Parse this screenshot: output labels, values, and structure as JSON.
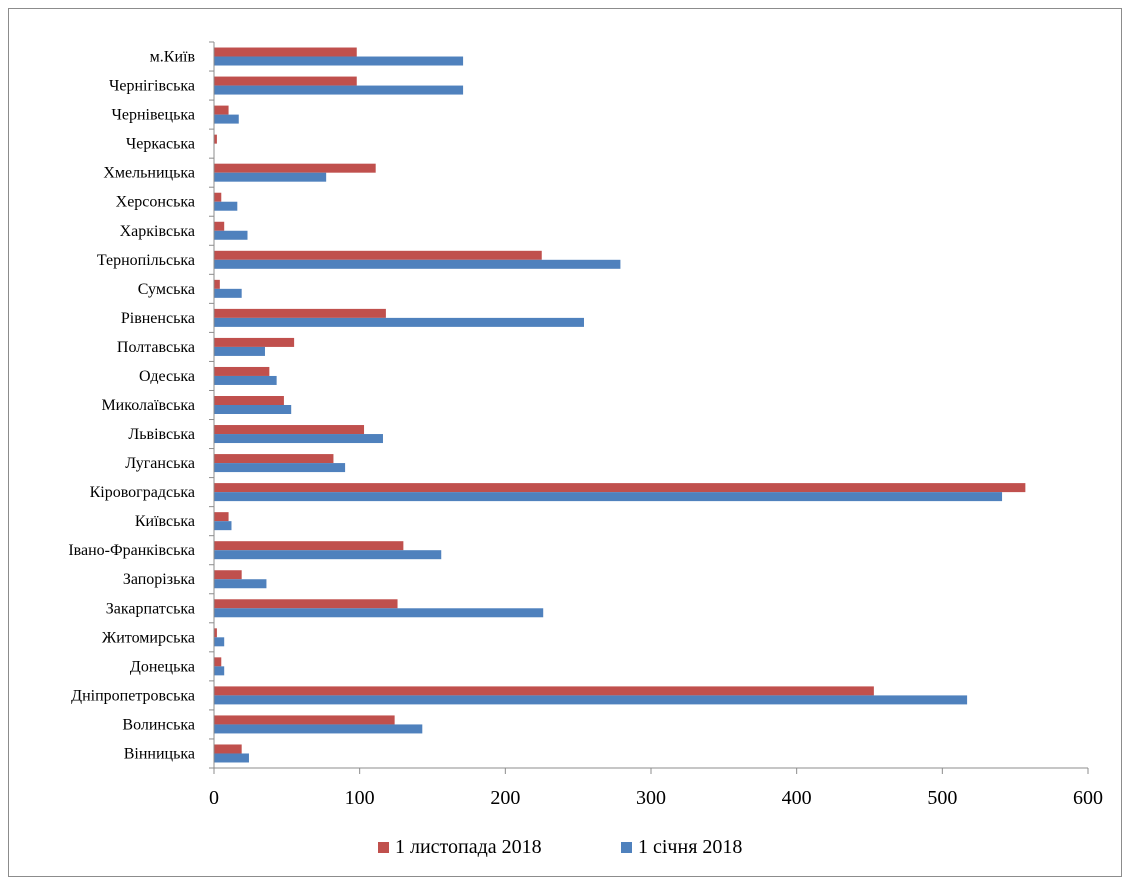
{
  "chart_data": {
    "type": "bar",
    "orientation": "horizontal",
    "title": "",
    "xlabel": "",
    "ylabel": "",
    "xlim": [
      0,
      600
    ],
    "xticks": [
      "0",
      "100",
      "200",
      "300",
      "400",
      "500",
      "600"
    ],
    "grid": false,
    "legend_position": "bottom",
    "categories": [
      "Вінницька",
      "Волинська",
      "Дніпропетровська",
      "Донецька",
      "Житомирська",
      "Закарпатська",
      "Запорізька",
      "Івано-Франківська",
      "Київська",
      "Кіровоградська",
      "Луганська",
      "Львівська",
      "Миколаївська",
      "Одеська",
      "Полтавська",
      "Рівненська",
      "Сумська",
      "Тернопільська",
      "Харківська",
      "Херсонська",
      "Хмельницька",
      "Черкаська",
      "Чернівецька",
      "Чернігівська",
      "м.Київ"
    ],
    "series": [
      {
        "name": "1 листопада 2018",
        "color": "#c0504d",
        "values": [
          19,
          124,
          453,
          5,
          2,
          126,
          19,
          130,
          10,
          557,
          82,
          103,
          48,
          38,
          55,
          118,
          4,
          225,
          7,
          5,
          111,
          2,
          10,
          98,
          98
        ]
      },
      {
        "name": "1 січня 2018",
        "color": "#4f81bd",
        "values": [
          24,
          143,
          517,
          7,
          7,
          226,
          36,
          156,
          12,
          541,
          90,
          116,
          53,
          43,
          35,
          254,
          19,
          279,
          23,
          16,
          77,
          0,
          17,
          171,
          171
        ]
      }
    ]
  }
}
